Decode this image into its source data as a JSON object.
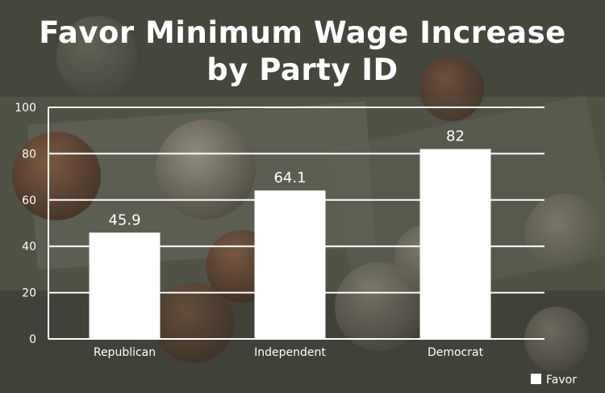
{
  "chart_data": {
    "type": "bar",
    "title": "Favor Minimum Wage Increase",
    "subtitle": "by Party ID",
    "categories": [
      "Republican",
      "Independent",
      "Democrat"
    ],
    "series": [
      {
        "name": "Favor",
        "values": [
          45.9,
          64.1,
          82
        ]
      }
    ],
    "data_labels": [
      "45.9",
      "64.1",
      "82"
    ],
    "ylim": [
      0,
      100
    ],
    "yticks": [
      0,
      20,
      40,
      60,
      80,
      100
    ],
    "xlabel": "",
    "ylabel": "",
    "grid": true,
    "legend": {
      "position": "bottom-right"
    },
    "colors": {
      "bar": "#ffffff",
      "grid": "#ffffff",
      "text": "#ffffff",
      "background": "#4a4a3a"
    }
  }
}
